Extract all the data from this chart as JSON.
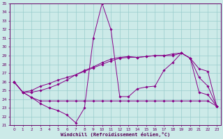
{
  "xlabel": "Windchill (Refroidissement éolien,°C)",
  "bg_color": "#cceae8",
  "line_color": "#880088",
  "grid_color": "#99cccc",
  "xlim": [
    -0.5,
    23.5
  ],
  "ylim": [
    21,
    35
  ],
  "xticks": [
    0,
    1,
    2,
    3,
    4,
    5,
    6,
    7,
    8,
    9,
    10,
    11,
    12,
    13,
    14,
    15,
    16,
    17,
    18,
    19,
    20,
    21,
    22,
    23
  ],
  "yticks": [
    21,
    22,
    23,
    24,
    25,
    26,
    27,
    28,
    29,
    30,
    31,
    32,
    33,
    34,
    35
  ],
  "series": [
    {
      "x": [
        0,
        1,
        2,
        3,
        4,
        5,
        6,
        7,
        8,
        9,
        10,
        11,
        12,
        13,
        14,
        15,
        16,
        17,
        18,
        19,
        20,
        21,
        22,
        23
      ],
      "y": [
        26.0,
        24.8,
        24.2,
        23.5,
        23.0,
        22.7,
        22.2,
        21.3,
        23.0,
        31.0,
        35.0,
        32.0,
        24.3,
        24.3,
        25.2,
        25.4,
        25.5,
        27.3,
        28.2,
        29.3,
        28.7,
        24.8,
        24.5,
        23.2
      ]
    },
    {
      "x": [
        0,
        1,
        2,
        3,
        4,
        5,
        6,
        7,
        8,
        9,
        10,
        11,
        12,
        13,
        14,
        15,
        16,
        17,
        18,
        19,
        20,
        21,
        22,
        23
      ],
      "y": [
        26.0,
        24.8,
        24.2,
        23.8,
        23.8,
        23.8,
        23.8,
        23.8,
        23.8,
        23.8,
        23.8,
        23.8,
        23.8,
        23.8,
        23.8,
        23.8,
        23.8,
        23.8,
        23.8,
        23.8,
        23.8,
        23.8,
        23.8,
        23.2
      ]
    },
    {
      "x": [
        0,
        1,
        2,
        3,
        4,
        5,
        6,
        7,
        8,
        9,
        10,
        11,
        12,
        13,
        14,
        15,
        16,
        17,
        18,
        19,
        20,
        21,
        22,
        23
      ],
      "y": [
        26.0,
        24.8,
        25.0,
        25.5,
        25.8,
        26.2,
        26.5,
        26.8,
        27.2,
        27.6,
        28.0,
        28.4,
        28.7,
        28.8,
        28.8,
        28.9,
        29.0,
        29.0,
        29.0,
        29.3,
        28.7,
        27.5,
        27.2,
        23.2
      ]
    },
    {
      "x": [
        0,
        1,
        2,
        3,
        4,
        5,
        6,
        7,
        8,
        9,
        10,
        11,
        12,
        13,
        14,
        15,
        16,
        17,
        18,
        19,
        20,
        21,
        22,
        23
      ],
      "y": [
        26.0,
        24.8,
        24.8,
        25.0,
        25.3,
        25.7,
        26.2,
        26.8,
        27.3,
        27.7,
        28.2,
        28.6,
        28.8,
        28.9,
        28.8,
        28.9,
        29.0,
        29.0,
        29.2,
        29.3,
        28.7,
        26.5,
        25.5,
        23.2
      ]
    }
  ]
}
